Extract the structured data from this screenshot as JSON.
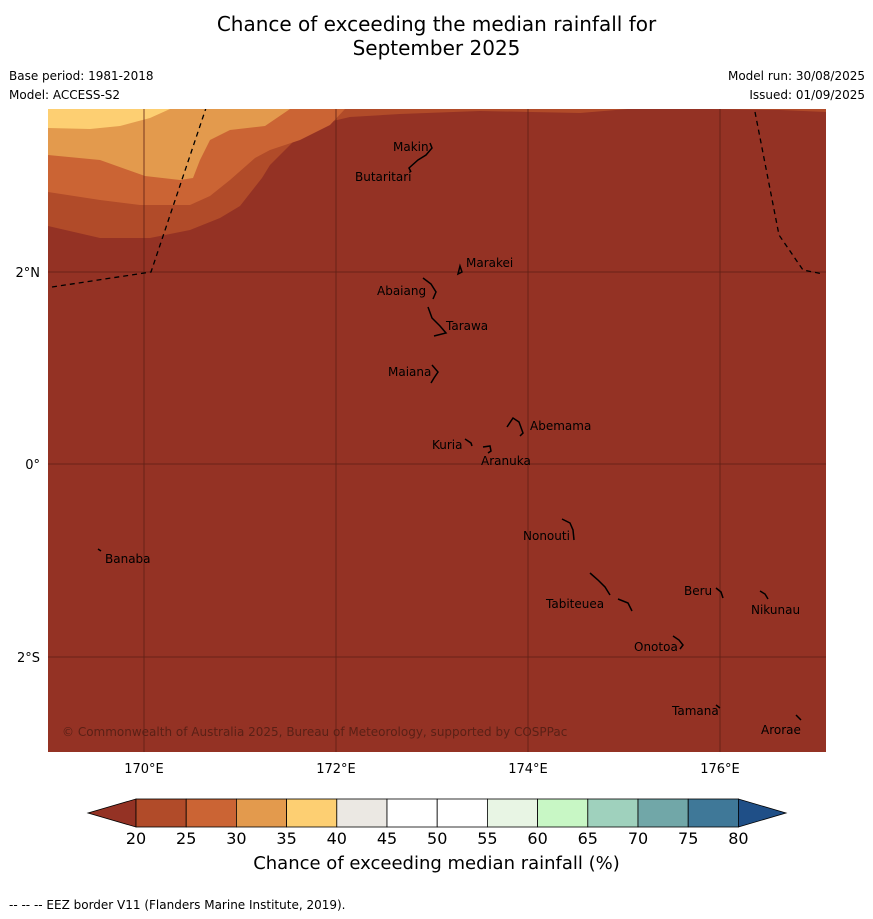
{
  "title_line1": "Chance of exceeding the median rainfall for",
  "title_line2": "September 2025",
  "base_period": "Base period: 1981-2018",
  "model": "Model: ACCESS-S2",
  "model_run": "Model run: 30/08/2025",
  "issued": "Issued: 01/09/2025",
  "copyright": "© Commonwealth of Australia 2025, Bureau of Meteorology, supported by COSPPac",
  "footer": "--  --  -- EEZ border V11 (Flanders Marine Institute, 2019).",
  "colorbar_title": "Chance of exceeding median rainfall (%)",
  "colorbar": {
    "ticks": [
      "20",
      "25",
      "30",
      "35",
      "40",
      "45",
      "50",
      "55",
      "60",
      "65",
      "70",
      "75",
      "80"
    ],
    "colors": [
      "#b14b29",
      "#cb6434",
      "#e39a4d",
      "#fdcf72",
      "#ebe8e3",
      "#ffffff",
      "#ffffff",
      "#e8f5e4",
      "#c8f7c5",
      "#9fd1bd",
      "#71a7a8",
      "#3f7898"
    ],
    "under_color": "#943224",
    "over_color": "#1f4f87"
  },
  "axes": {
    "x_ticks": [
      "170°E",
      "172°E",
      "174°E",
      "176°E"
    ],
    "y_ticks": [
      "2°N",
      "0°",
      "2°S"
    ]
  },
  "places": [
    {
      "name": "Makin"
    },
    {
      "name": "Butaritari"
    },
    {
      "name": "Marakei"
    },
    {
      "name": "Abaiang"
    },
    {
      "name": "Tarawa"
    },
    {
      "name": "Maiana"
    },
    {
      "name": "Abemama"
    },
    {
      "name": "Kuria"
    },
    {
      "name": "Aranuka"
    },
    {
      "name": "Nonouti"
    },
    {
      "name": "Banaba"
    },
    {
      "name": "Beru"
    },
    {
      "name": "Nikunau"
    },
    {
      "name": "Tabiteuea"
    },
    {
      "name": "Onotoa"
    },
    {
      "name": "Tamana"
    },
    {
      "name": "Arorae"
    }
  ],
  "field_colors": {
    "c20": "#943224",
    "c25": "#b14b29",
    "c30": "#cb6434",
    "c35": "#e39a4d",
    "c40": "#fdcf72"
  }
}
